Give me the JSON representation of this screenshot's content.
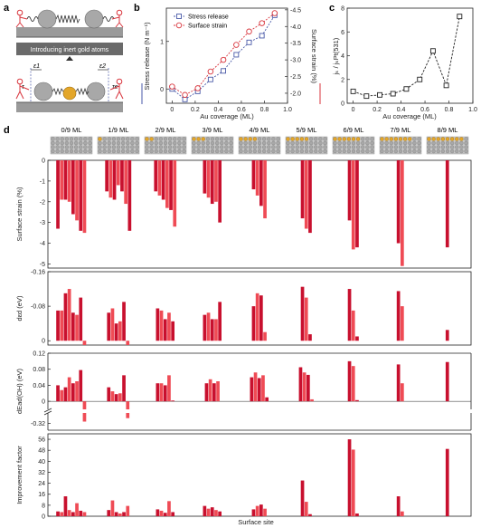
{
  "panel_a": {
    "letter": "a",
    "banner_text": "Introducing inert gold atoms",
    "label_e1": "ε1",
    "label_e2": "ε2",
    "label_tau": "τ",
    "label_taue": "τe"
  },
  "colors": {
    "stress": "#4a5aa8",
    "strain": "#d8343c",
    "bar_dark": "#c8102e",
    "bar_light": "#ef4b55",
    "slab_gold": "#e3a62a",
    "slab_grey": "#a8a8a8"
  },
  "chart_data": [
    {
      "id": "b",
      "type": "line",
      "letter": "b",
      "xlabel": "Au coverage (ML)",
      "ylabel_left": "Stress release (N m⁻¹)",
      "ylabel_right": "Surface strain (%)",
      "xlim": [
        -0.05,
        1.0
      ],
      "xticks": [
        "0",
        "0.2",
        "0.4",
        "0.6",
        "0.8",
        "1.0"
      ],
      "xtick_values": [
        0,
        0.2,
        0.4,
        0.6,
        0.8,
        1.0
      ],
      "ylim_left": [
        -0.3,
        1.7
      ],
      "yticks_left": [
        "0",
        "1"
      ],
      "ytick_left_values": [
        0,
        1
      ],
      "ylim_right": [
        -1.7,
        -4.55
      ],
      "yticks_right": [
        "-4.5",
        "-4.0",
        "-3.5",
        "-3.0",
        "-2.5",
        "-2.0"
      ],
      "ytick_right_values": [
        -4.5,
        -4.0,
        -3.5,
        -3.0,
        -2.5,
        -2.0
      ],
      "legend": [
        "Stress release",
        "Surface strain"
      ],
      "legend_position": "top-left",
      "x": [
        0,
        0.111,
        0.222,
        0.333,
        0.444,
        0.556,
        0.667,
        0.778,
        0.889
      ],
      "series": [
        {
          "name": "Stress release",
          "axis": "left",
          "marker": "square",
          "values": [
            0.0,
            -0.22,
            -0.05,
            0.2,
            0.38,
            0.72,
            0.98,
            1.12,
            1.55
          ]
        },
        {
          "name": "Surface strain",
          "axis": "right",
          "marker": "circle",
          "values": [
            -2.2,
            -1.95,
            -2.15,
            -2.65,
            -3.0,
            -3.45,
            -3.85,
            -4.1,
            -4.4
          ]
        }
      ]
    },
    {
      "id": "c",
      "type": "line",
      "letter": "c",
      "xlabel": "Au coverage (ML)",
      "ylabel": "jₖ / jₖPt(531)",
      "xlim": [
        -0.05,
        1.0
      ],
      "xticks": [
        "0",
        "0.2",
        "0.4",
        "0.6",
        "0.8",
        "1.0"
      ],
      "xtick_values": [
        0,
        0.2,
        0.4,
        0.6,
        0.8,
        1.0
      ],
      "ylim": [
        0,
        8
      ],
      "yticks": [
        "0",
        "2",
        "4",
        "6",
        "8"
      ],
      "ytick_values": [
        0,
        2,
        4,
        6,
        8
      ],
      "x": [
        0,
        0.111,
        0.222,
        0.333,
        0.444,
        0.556,
        0.667,
        0.778,
        0.889
      ],
      "values": [
        1.0,
        0.6,
        0.7,
        0.8,
        1.2,
        2.0,
        4.4,
        1.5,
        7.3
      ]
    },
    {
      "id": "d",
      "type": "bar",
      "letter": "d",
      "categories": [
        "0/9 ML",
        "1/9 ML",
        "2/9 ML",
        "3/9 ML",
        "4/9 ML",
        "5/9 ML",
        "6/9 ML",
        "7/9 ML",
        "8/9 ML"
      ],
      "gold_atoms": [
        0,
        1,
        2,
        3,
        4,
        5,
        6,
        7,
        8
      ],
      "xlabel": "Surface site",
      "rows": [
        {
          "name": "strain",
          "ylabel": "Surface strain (%)",
          "ylim": [
            -5.2,
            0
          ],
          "yticks": [
            "0",
            "-1",
            "-2",
            "-3",
            "-4",
            "-5"
          ],
          "ytick_values": [
            0,
            -1,
            -2,
            -3,
            -4,
            -5
          ],
          "groups": [
            [
              -3.3,
              -1.9,
              -1.9,
              -2.0,
              -2.6,
              -2.9,
              -3.4,
              -3.5
            ],
            [
              -1.5,
              -1.8,
              -1.9,
              -1.2,
              -1.5,
              -2.1,
              -3.4
            ],
            [
              -1.5,
              -1.7,
              -1.9,
              -2.3,
              -2.4,
              -3.2
            ],
            [
              -1.6,
              -1.8,
              -2.1,
              -2.0,
              -3.0
            ],
            [
              -1.4,
              -1.7,
              -2.2,
              -2.8
            ],
            [
              -2.8,
              -3.3,
              -3.5
            ],
            [
              -2.9,
              -4.3,
              -4.2
            ],
            [
              -4.0,
              -5.1
            ],
            [
              -4.2
            ]
          ]
        },
        {
          "name": "deps",
          "ylabel": "dεd (eV)",
          "ylim": [
            0.01,
            -0.16
          ],
          "yticks": [
            "-0.16",
            "-0.08",
            "0"
          ],
          "ytick_values": [
            -0.16,
            -0.08,
            0
          ],
          "groups": [
            [
              -0.07,
              -0.07,
              -0.11,
              -0.12,
              -0.065,
              -0.06,
              -0.1,
              0.01
            ],
            [
              -0.065,
              -0.075,
              -0.04,
              -0.045,
              -0.09,
              0.01
            ],
            [
              -0.075,
              -0.07,
              -0.05,
              -0.065,
              -0.045
            ],
            [
              -0.06,
              -0.065,
              -0.05,
              -0.05,
              -0.09
            ],
            [
              -0.08,
              -0.11,
              -0.105,
              -0.02
            ],
            [
              -0.125,
              -0.1,
              -0.015
            ],
            [
              -0.12,
              -0.07,
              -0.01
            ],
            [
              -0.115,
              -0.08
            ],
            [
              -0.025
            ]
          ]
        },
        {
          "name": "dEad",
          "ylabel": "dEad(OH) (eV)",
          "ylim_top": [
            -0.02,
            0.12
          ],
          "yticks_top": [
            "0",
            "0.04",
            "0.08",
            "0.12"
          ],
          "ytick_top_values": [
            0,
            0.04,
            0.08,
            0.12
          ],
          "ylim_bottom": [
            -0.36,
            -0.26
          ],
          "yticks_bottom": [
            "-0.32"
          ],
          "ytick_bottom_values": [
            -0.32
          ],
          "groups": [
            [
              0.04,
              0.028,
              0.035,
              0.06,
              0.045,
              0.05,
              0.078,
              -0.31
            ],
            [
              0.035,
              0.025,
              0.018,
              0.02,
              0.065,
              -0.29
            ],
            [
              0.045,
              0.045,
              0.04,
              0.065,
              0.002
            ],
            [
              0.045,
              0.055,
              0.045,
              0.05
            ],
            [
              0.06,
              0.072,
              0.058,
              0.065,
              0.01
            ],
            [
              0.085,
              0.072,
              0.066,
              0.005
            ],
            [
              0.1,
              0.088,
              0.003
            ],
            [
              0.092,
              0.045
            ],
            [
              0.098
            ]
          ]
        },
        {
          "name": "improvement",
          "ylabel": "Improvement factor",
          "ylim": [
            0,
            60
          ],
          "yticks": [
            "0",
            "8",
            "16",
            "24",
            "32",
            "40",
            "48",
            "56"
          ],
          "ytick_values": [
            0,
            8,
            16,
            24,
            32,
            40,
            48,
            56
          ],
          "groups": [
            [
              3.5,
              3.0,
              14.5,
              4.5,
              3.0,
              9.5,
              4.0,
              3.0
            ],
            [
              4.5,
              11.5,
              3.0,
              2.0,
              3.0,
              7.5
            ],
            [
              5.0,
              4.0,
              2.5,
              11.0,
              3.0
            ],
            [
              7.5,
              5.5,
              6.5,
              4.5,
              3.5
            ],
            [
              5.0,
              7.5,
              8.5,
              5.5
            ],
            [
              26.0,
              10.5,
              1.5
            ],
            [
              56.0,
              48.5,
              2.0
            ],
            [
              14.5,
              3.5
            ],
            [
              49.0
            ]
          ]
        }
      ]
    }
  ]
}
